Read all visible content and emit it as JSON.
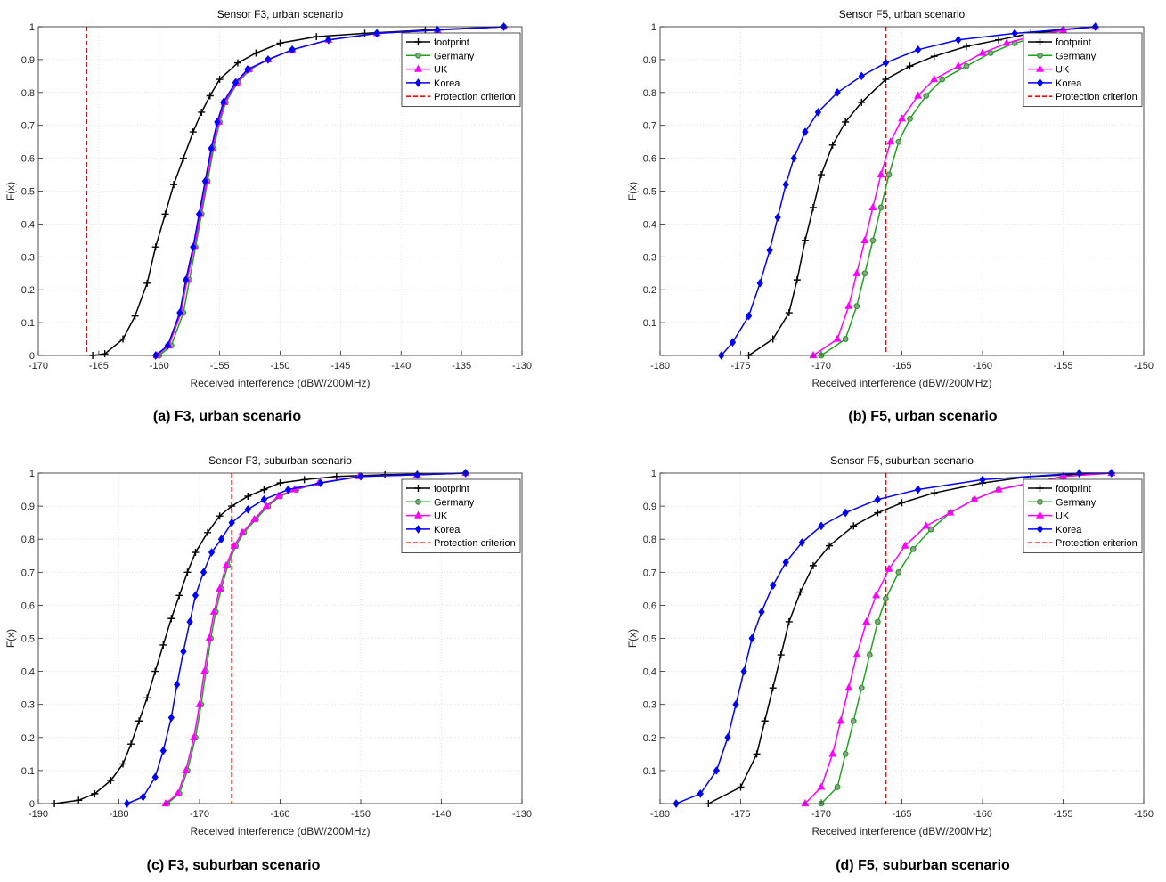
{
  "legend_labels": [
    "footprint",
    "Germany",
    "UK",
    "Korea",
    "Protection criterion"
  ],
  "colors": {
    "footprint": "#000000",
    "Germany": "#1fa31f",
    "UK": "#ff00ff",
    "Korea": "#0000ff",
    "criterion": "#ff0000",
    "grid": "#dddddd"
  },
  "chart_data": [
    {
      "type": "line",
      "caption": "(a) F3, urban scenario",
      "title": "Sensor F3, urban scenario",
      "xlabel": "Received interference (dBW/200MHz)",
      "ylabel": "F(x)",
      "xlim": [
        -170,
        -130
      ],
      "ylim": [
        0,
        1
      ],
      "xticks": [
        -170,
        -165,
        -160,
        -155,
        -150,
        -145,
        -140,
        -135,
        -130
      ],
      "yticks": [
        0,
        0.1,
        0.2,
        0.3,
        0.4,
        0.5,
        0.6,
        0.7,
        0.8,
        0.9,
        1
      ],
      "grid": true,
      "legend": "top-right",
      "protection_criterion": -166,
      "series": [
        {
          "name": "footprint",
          "x": [
            -165.5,
            -164.5,
            -163,
            -162,
            -161,
            -160.3,
            -159.5,
            -158.8,
            -158,
            -157.2,
            -156.5,
            -155.8,
            -155,
            -153.5,
            -152,
            -150,
            -147,
            -143,
            -138,
            -131.5
          ],
          "y": [
            0,
            0.005,
            0.05,
            0.12,
            0.22,
            0.33,
            0.43,
            0.52,
            0.6,
            0.68,
            0.74,
            0.79,
            0.84,
            0.89,
            0.92,
            0.95,
            0.97,
            0.98,
            0.99,
            1
          ]
        },
        {
          "name": "Germany",
          "x": [
            -160,
            -159,
            -158,
            -157.5,
            -157,
            -156.5,
            -156,
            -155.5,
            -155,
            -154.5,
            -153.5,
            -152.5,
            -151,
            -149,
            -146,
            -142,
            -137,
            -131.5
          ],
          "y": [
            0,
            0.03,
            0.13,
            0.23,
            0.33,
            0.43,
            0.53,
            0.63,
            0.71,
            0.77,
            0.83,
            0.87,
            0.9,
            0.93,
            0.96,
            0.98,
            0.99,
            1
          ]
        },
        {
          "name": "UK",
          "x": [
            -160.2,
            -159.2,
            -158.2,
            -157.7,
            -157.1,
            -156.6,
            -156.1,
            -155.6,
            -155.1,
            -154.6,
            -153.6,
            -152.6,
            -151,
            -149,
            -146,
            -142,
            -137,
            -131.5
          ],
          "y": [
            0,
            0.03,
            0.13,
            0.23,
            0.33,
            0.43,
            0.53,
            0.63,
            0.71,
            0.77,
            0.83,
            0.87,
            0.9,
            0.93,
            0.96,
            0.98,
            0.99,
            1
          ]
        },
        {
          "name": "Korea",
          "x": [
            -160.3,
            -159.3,
            -158.3,
            -157.8,
            -157.2,
            -156.7,
            -156.2,
            -155.7,
            -155.2,
            -154.7,
            -153.7,
            -152.7,
            -151,
            -149,
            -146,
            -142,
            -137,
            -131.5
          ],
          "y": [
            0,
            0.03,
            0.13,
            0.23,
            0.33,
            0.43,
            0.53,
            0.63,
            0.71,
            0.77,
            0.83,
            0.87,
            0.9,
            0.93,
            0.96,
            0.98,
            0.99,
            1
          ]
        }
      ]
    },
    {
      "type": "line",
      "caption": "(b) F5, urban scenario",
      "title": "Sensor F5, urban scenario",
      "xlabel": "Received interference (dBW/200MHz)",
      "ylabel": "F(x)",
      "xlim": [
        -180,
        -150
      ],
      "ylim": [
        0,
        1
      ],
      "xticks": [
        -180,
        -175,
        -170,
        -165,
        -160,
        -155,
        -150
      ],
      "yticks": [
        0,
        0.1,
        0.2,
        0.3,
        0.4,
        0.5,
        0.6,
        0.7,
        0.8,
        0.9,
        1
      ],
      "grid": true,
      "legend": "top-right",
      "protection_criterion": -166,
      "series": [
        {
          "name": "footprint",
          "x": [
            -174.5,
            -173,
            -172,
            -171.5,
            -171,
            -170.5,
            -170,
            -169.3,
            -168.5,
            -167.5,
            -166,
            -164.5,
            -163,
            -161,
            -159,
            -157,
            -153
          ],
          "y": [
            0,
            0.05,
            0.13,
            0.23,
            0.35,
            0.45,
            0.55,
            0.64,
            0.71,
            0.77,
            0.84,
            0.88,
            0.91,
            0.94,
            0.96,
            0.98,
            1
          ]
        },
        {
          "name": "Germany",
          "x": [
            -170,
            -168.5,
            -167.8,
            -167.3,
            -166.8,
            -166.3,
            -165.8,
            -165.2,
            -164.5,
            -163.5,
            -162.5,
            -161,
            -159.5,
            -158,
            -156.5,
            -155,
            -153
          ],
          "y": [
            0,
            0.05,
            0.15,
            0.25,
            0.35,
            0.45,
            0.55,
            0.65,
            0.72,
            0.79,
            0.84,
            0.88,
            0.92,
            0.95,
            0.97,
            0.99,
            1
          ]
        },
        {
          "name": "UK",
          "x": [
            -170.5,
            -169,
            -168.3,
            -167.8,
            -167.3,
            -166.8,
            -166.3,
            -165.7,
            -165,
            -164,
            -163,
            -161.5,
            -160,
            -158.5,
            -157,
            -155,
            -153
          ],
          "y": [
            0,
            0.05,
            0.15,
            0.25,
            0.35,
            0.45,
            0.55,
            0.65,
            0.72,
            0.79,
            0.84,
            0.88,
            0.92,
            0.95,
            0.97,
            0.99,
            1
          ]
        },
        {
          "name": "Korea",
          "x": [
            -176.2,
            -175.5,
            -174.5,
            -173.8,
            -173.2,
            -172.7,
            -172.2,
            -171.7,
            -171,
            -170.2,
            -169,
            -167.5,
            -166,
            -164,
            -161.5,
            -158,
            -153
          ],
          "y": [
            0,
            0.04,
            0.12,
            0.22,
            0.32,
            0.42,
            0.52,
            0.6,
            0.68,
            0.74,
            0.8,
            0.85,
            0.89,
            0.93,
            0.96,
            0.98,
            1
          ]
        }
      ]
    },
    {
      "type": "line",
      "caption": "(c) F3, suburban scenario",
      "title": "Sensor F3, suburban scenario",
      "xlabel": "Received interference (dBW/200MHz)",
      "ylabel": "F(x)",
      "xlim": [
        -190,
        -130
      ],
      "ylim": [
        0,
        1
      ],
      "xticks": [
        -190,
        -180,
        -170,
        -160,
        -150,
        -140,
        -130
      ],
      "yticks": [
        0,
        0.1,
        0.2,
        0.3,
        0.4,
        0.5,
        0.6,
        0.7,
        0.8,
        0.9,
        1
      ],
      "grid": true,
      "legend": "top-right",
      "protection_criterion": -166,
      "series": [
        {
          "name": "footprint",
          "x": [
            -188,
            -185,
            -183,
            -181,
            -179.5,
            -178.5,
            -177.5,
            -176.5,
            -175.5,
            -174.5,
            -173.5,
            -172.5,
            -171.5,
            -170.5,
            -169,
            -167.5,
            -166,
            -164,
            -162,
            -160,
            -157,
            -153,
            -147,
            -137
          ],
          "y": [
            0,
            0.01,
            0.03,
            0.07,
            0.12,
            0.18,
            0.25,
            0.32,
            0.4,
            0.48,
            0.56,
            0.63,
            0.7,
            0.76,
            0.82,
            0.87,
            0.9,
            0.93,
            0.95,
            0.97,
            0.98,
            0.99,
            0.995,
            1
          ]
        },
        {
          "name": "Germany",
          "x": [
            -174,
            -172.5,
            -171.5,
            -170.5,
            -169.8,
            -169.2,
            -168.6,
            -168,
            -167.3,
            -166.5,
            -165.5,
            -164.5,
            -163,
            -161.5,
            -160,
            -158,
            -155,
            -150,
            -143,
            -137
          ],
          "y": [
            0,
            0.03,
            0.1,
            0.2,
            0.3,
            0.4,
            0.5,
            0.58,
            0.65,
            0.72,
            0.78,
            0.82,
            0.86,
            0.9,
            0.93,
            0.95,
            0.97,
            0.99,
            0.995,
            1
          ]
        },
        {
          "name": "UK",
          "x": [
            -174.2,
            -172.7,
            -171.7,
            -170.7,
            -170,
            -169.4,
            -168.8,
            -168.2,
            -167.5,
            -166.7,
            -165.7,
            -164.7,
            -163.2,
            -161.7,
            -160.2,
            -158.2,
            -155.2,
            -150.2,
            -143,
            -137
          ],
          "y": [
            0,
            0.03,
            0.1,
            0.2,
            0.3,
            0.4,
            0.5,
            0.58,
            0.65,
            0.72,
            0.78,
            0.82,
            0.86,
            0.9,
            0.93,
            0.95,
            0.97,
            0.99,
            0.995,
            1
          ]
        },
        {
          "name": "Korea",
          "x": [
            -179,
            -177,
            -175.5,
            -174.5,
            -173.5,
            -172.8,
            -172,
            -171.2,
            -170.5,
            -169.5,
            -168.5,
            -167.3,
            -166,
            -164,
            -162,
            -159,
            -155,
            -150,
            -143,
            -137
          ],
          "y": [
            0,
            0.02,
            0.08,
            0.16,
            0.26,
            0.36,
            0.46,
            0.55,
            0.63,
            0.7,
            0.76,
            0.8,
            0.85,
            0.89,
            0.92,
            0.95,
            0.97,
            0.99,
            0.995,
            1
          ]
        }
      ]
    },
    {
      "type": "line",
      "caption": "(d) F5, suburban scenario",
      "title": "Sensor F5, suburban scenario",
      "xlabel": "Received interference (dBW/200MHz)",
      "ylabel": "F(x)",
      "xlim": [
        -180,
        -150
      ],
      "ylim": [
        0,
        1
      ],
      "xticks": [
        -180,
        -175,
        -170,
        -165,
        -160,
        -155,
        -150
      ],
      "yticks": [
        0,
        0.1,
        0.2,
        0.3,
        0.4,
        0.5,
        0.6,
        0.7,
        0.8,
        0.9,
        1
      ],
      "grid": true,
      "legend": "top-right",
      "protection_criterion": -166,
      "series": [
        {
          "name": "footprint",
          "x": [
            -177,
            -175,
            -174,
            -173.5,
            -173,
            -172.5,
            -172,
            -171.3,
            -170.5,
            -169.5,
            -168,
            -166.5,
            -165,
            -163,
            -160,
            -157,
            -152
          ],
          "y": [
            0,
            0.05,
            0.15,
            0.25,
            0.35,
            0.45,
            0.55,
            0.64,
            0.72,
            0.78,
            0.84,
            0.88,
            0.91,
            0.94,
            0.97,
            0.99,
            1
          ]
        },
        {
          "name": "Germany",
          "x": [
            -170,
            -169,
            -168.5,
            -168,
            -167.5,
            -167,
            -166.5,
            -166,
            -165.2,
            -164.3,
            -163.2,
            -162,
            -160.5,
            -159,
            -157,
            -155,
            -152
          ],
          "y": [
            0,
            0.05,
            0.15,
            0.25,
            0.35,
            0.45,
            0.55,
            0.62,
            0.7,
            0.77,
            0.83,
            0.88,
            0.92,
            0.95,
            0.97,
            0.99,
            1
          ]
        },
        {
          "name": "UK",
          "x": [
            -171,
            -170,
            -169.3,
            -168.8,
            -168.3,
            -167.8,
            -167.2,
            -166.6,
            -165.8,
            -164.8,
            -163.5,
            -162,
            -160.5,
            -159,
            -157,
            -155,
            -152
          ],
          "y": [
            0,
            0.05,
            0.15,
            0.25,
            0.35,
            0.45,
            0.55,
            0.63,
            0.71,
            0.78,
            0.84,
            0.88,
            0.92,
            0.95,
            0.97,
            0.99,
            1
          ]
        },
        {
          "name": "Korea",
          "x": [
            -179,
            -177.5,
            -176.5,
            -175.8,
            -175.3,
            -174.8,
            -174.3,
            -173.7,
            -173,
            -172.2,
            -171.2,
            -170,
            -168.5,
            -166.5,
            -164,
            -160,
            -154,
            -152
          ],
          "y": [
            0,
            0.03,
            0.1,
            0.2,
            0.3,
            0.4,
            0.5,
            0.58,
            0.66,
            0.73,
            0.79,
            0.84,
            0.88,
            0.92,
            0.95,
            0.98,
            1,
            1
          ]
        }
      ]
    }
  ]
}
